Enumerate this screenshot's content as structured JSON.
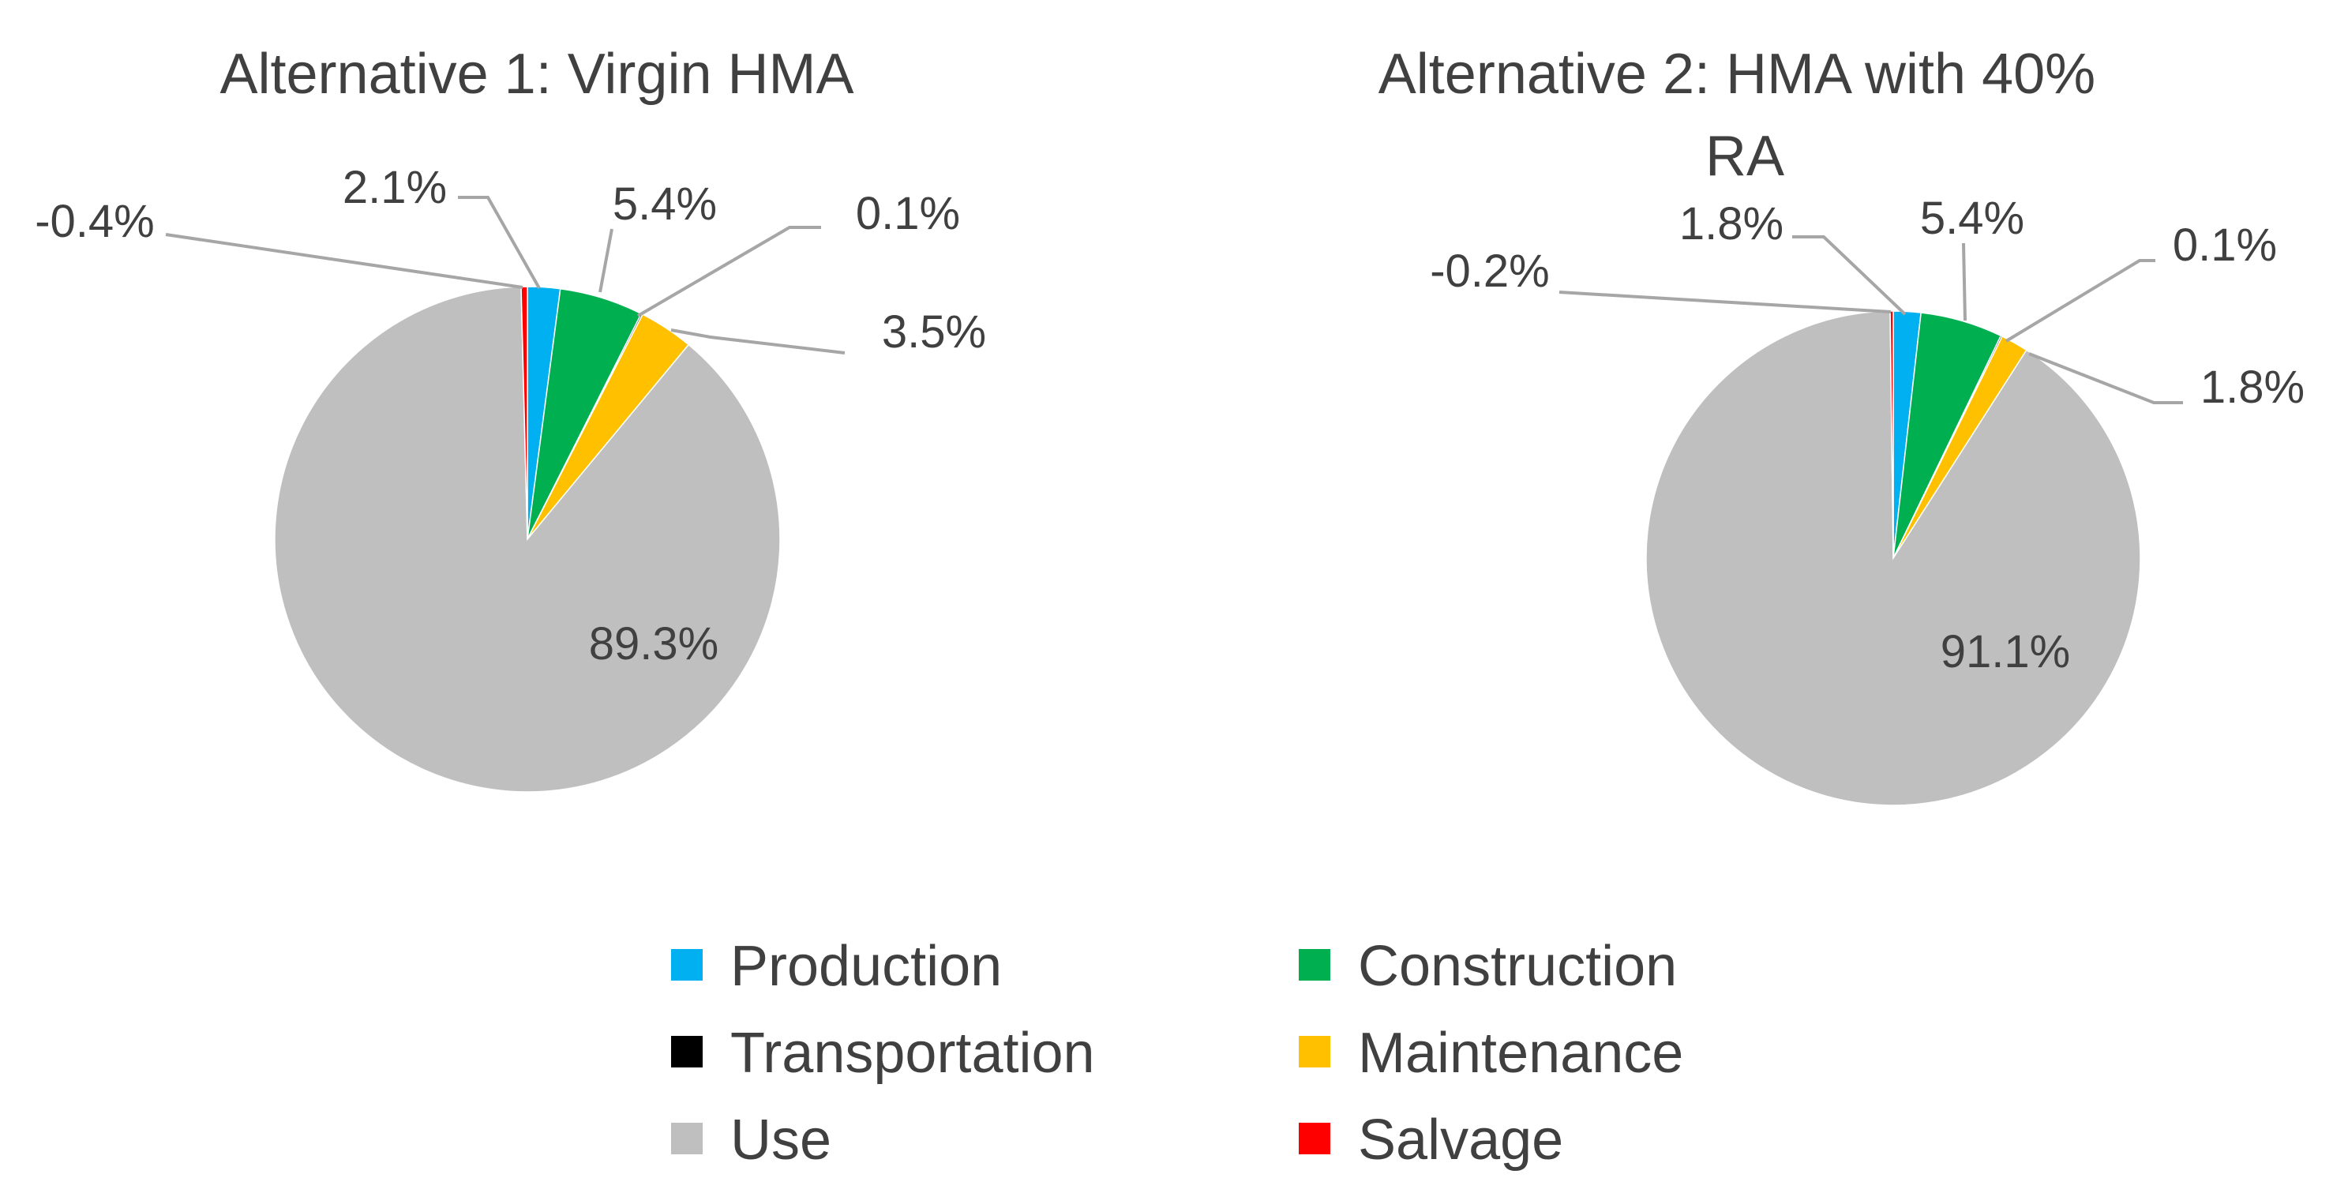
{
  "chart_data": [
    {
      "type": "pie",
      "title": "Alternative 1: Virgin HMA",
      "start_angle_deg": 0,
      "direction": "clockwise",
      "slices": [
        {
          "category": "Production",
          "value": 2.1,
          "label": "2.1%"
        },
        {
          "category": "Construction",
          "value": 5.4,
          "label": "5.4%"
        },
        {
          "category": "Transportation",
          "value": 0.1,
          "label": "0.1%"
        },
        {
          "category": "Maintenance",
          "value": 3.5,
          "label": "3.5%"
        },
        {
          "category": "Use",
          "value": 89.3,
          "label": "89.3%"
        },
        {
          "category": "Salvage",
          "value": -0.4,
          "label": "-0.4%"
        }
      ]
    },
    {
      "type": "pie",
      "title": "Alternative 2: HMA with 40% RA",
      "title_lines": [
        "Alternative 2: HMA with 40%",
        "RA"
      ],
      "start_angle_deg": 0,
      "direction": "clockwise",
      "slices": [
        {
          "category": "Production",
          "value": 1.8,
          "label": "1.8%"
        },
        {
          "category": "Construction",
          "value": 5.4,
          "label": "5.4%"
        },
        {
          "category": "Transportation",
          "value": 0.1,
          "label": "0.1%"
        },
        {
          "category": "Maintenance",
          "value": 1.8,
          "label": "1.8%"
        },
        {
          "category": "Use",
          "value": 91.1,
          "label": "91.1%"
        },
        {
          "category": "Salvage",
          "value": -0.2,
          "label": "-0.2%"
        }
      ]
    }
  ],
  "legend": {
    "placement": "bottom",
    "items": [
      {
        "name": "Production",
        "color": "#00b0f0"
      },
      {
        "name": "Construction",
        "color": "#00b050"
      },
      {
        "name": "Transportation",
        "color": "#000000"
      },
      {
        "name": "Maintenance",
        "color": "#ffc000"
      },
      {
        "name": "Use",
        "color": "#bfbfbf"
      },
      {
        "name": "Salvage",
        "color": "#ff0000"
      }
    ]
  }
}
